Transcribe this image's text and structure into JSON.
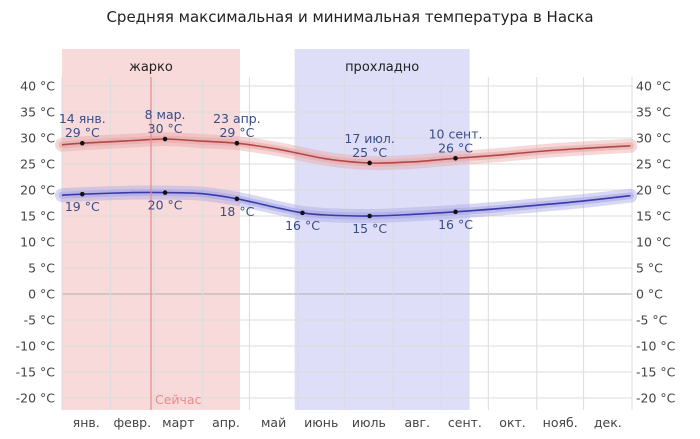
{
  "chart_data": {
    "type": "line",
    "title": "Средняя максимальная и минимальная температура в Наска",
    "x_unit": "day_of_year",
    "categories": [
      "янв.",
      "февр.",
      "март",
      "апр.",
      "май",
      "июнь",
      "июль",
      "авг.",
      "сент.",
      "окт.",
      "нояб.",
      "дек."
    ],
    "ylim": [
      -22,
      42
    ],
    "y_ticks": [
      "40 °C",
      "35 °C",
      "30 °C",
      "25 °C",
      "20 °C",
      "15 °C",
      "10 °C",
      "5 °C",
      "0 °C",
      "-5 °C",
      "-10 °C",
      "-15 °C",
      "-20 °C"
    ],
    "y_tick_values": [
      40,
      35,
      30,
      25,
      20,
      15,
      10,
      5,
      0,
      -5,
      -10,
      -15,
      -20
    ],
    "grid": true,
    "bands": [
      {
        "label": "жарко",
        "start_day": 1,
        "end_day": 115,
        "color": "#f7d4d4"
      },
      {
        "label": "прохладно",
        "start_day": 150,
        "end_day": 262,
        "color": "#d8d8f7"
      }
    ],
    "now_marker": {
      "label": "Сейчас",
      "day": 58,
      "color": "#e88a8a"
    },
    "series": [
      {
        "name": "",
        "color": "#b04848",
        "band_color": "#e9a8a8",
        "x": [
          1,
          14,
          46,
          67,
          90,
          113,
          140,
          170,
          198,
          225,
          253,
          280,
          310,
          335,
          365
        ],
        "values": [
          28.7,
          29.0,
          29.5,
          29.8,
          29.4,
          29.0,
          27.8,
          26.0,
          25.2,
          25.4,
          26.1,
          26.7,
          27.5,
          28.0,
          28.5
        ]
      },
      {
        "name": "",
        "color": "#3a3aa8",
        "band_color": "#a8a8e6",
        "x": [
          1,
          14,
          46,
          67,
          90,
          113,
          140,
          155,
          170,
          198,
          225,
          253,
          280,
          310,
          335,
          365
        ],
        "values": [
          19.0,
          19.2,
          19.5,
          19.5,
          19.3,
          18.3,
          16.5,
          15.6,
          15.2,
          15.0,
          15.3,
          15.8,
          16.4,
          17.2,
          17.9,
          18.9
        ]
      }
    ],
    "annotations": [
      {
        "date": "14 янв.",
        "value": "29 °C",
        "day": 14,
        "temp": 29,
        "below": false
      },
      {
        "date": "8 мар.",
        "value": "30 °C",
        "day": 67,
        "temp": 29.8,
        "below": false
      },
      {
        "date": "23 апр.",
        "value": "29 °C",
        "day": 113,
        "temp": 29,
        "below": false
      },
      {
        "date": "17 июл.",
        "value": "25 °C",
        "day": 198,
        "temp": 25.2,
        "below": false
      },
      {
        "date": "10 сент.",
        "value": "26 °C",
        "day": 253,
        "temp": 26.1,
        "below": false
      },
      {
        "date": "",
        "value": "19 °C",
        "day": 14,
        "temp": 19.2,
        "below": true
      },
      {
        "date": "",
        "value": "20 °C",
        "day": 67,
        "temp": 19.5,
        "below": true
      },
      {
        "date": "",
        "value": "18 °C",
        "day": 113,
        "temp": 18.3,
        "below": true
      },
      {
        "date": "",
        "value": "16 °C",
        "day": 155,
        "temp": 15.6,
        "below": true
      },
      {
        "date": "",
        "value": "15 °C",
        "day": 198,
        "temp": 15.0,
        "below": true
      },
      {
        "date": "",
        "value": "16 °C",
        "day": 253,
        "temp": 15.8,
        "below": true
      }
    ]
  }
}
